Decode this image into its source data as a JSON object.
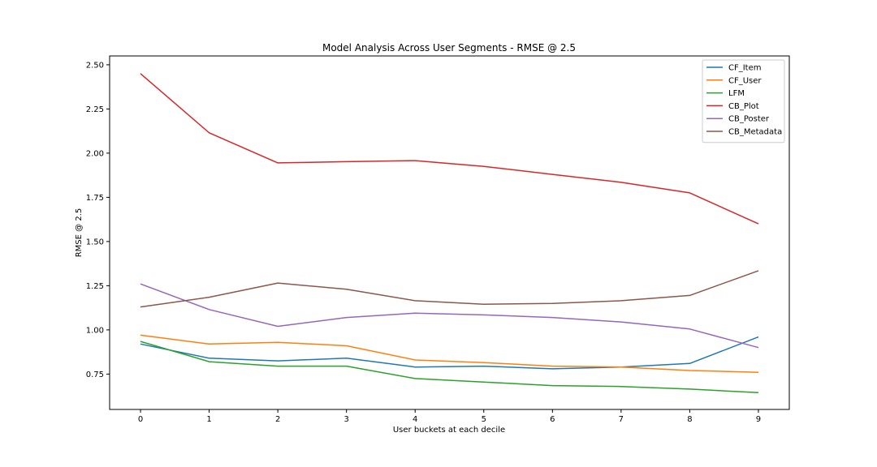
{
  "chart_data": {
    "type": "line",
    "title": "Model Analysis Across User Segments - RMSE @ 2.5",
    "xlabel": "User buckets at each decile",
    "ylabel": "RMSE @ 2.5",
    "x": [
      0,
      1,
      2,
      3,
      4,
      5,
      6,
      7,
      8,
      9
    ],
    "xticks": [
      "0",
      "1",
      "2",
      "3",
      "4",
      "5",
      "6",
      "7",
      "8",
      "9"
    ],
    "yticks": [
      "0.75",
      "1.00",
      "1.25",
      "1.50",
      "1.75",
      "2.00",
      "2.25",
      "2.50"
    ],
    "ylim": [
      0.55,
      2.55
    ],
    "xlim": [
      -0.45,
      9.45
    ],
    "grid": false,
    "legend_position": "top-right",
    "series": [
      {
        "name": "CF_Item",
        "color": "#1f77b4",
        "values": [
          0.92,
          0.84,
          0.825,
          0.84,
          0.79,
          0.795,
          0.78,
          0.79,
          0.81,
          0.96
        ]
      },
      {
        "name": "CF_User",
        "color": "#ff7f0e",
        "values": [
          0.97,
          0.92,
          0.93,
          0.91,
          0.83,
          0.815,
          0.795,
          0.79,
          0.77,
          0.76
        ]
      },
      {
        "name": "LFM",
        "color": "#2ca02c",
        "values": [
          0.935,
          0.82,
          0.795,
          0.795,
          0.725,
          0.705,
          0.685,
          0.68,
          0.665,
          0.645
        ]
      },
      {
        "name": "CB_Plot",
        "color": "#d62728",
        "values": [
          2.45,
          2.115,
          1.945,
          1.952,
          1.958,
          1.925,
          1.88,
          1.835,
          1.775,
          1.6
        ]
      },
      {
        "name": "CB_Poster",
        "color": "#9467bd",
        "values": [
          1.26,
          1.115,
          1.02,
          1.07,
          1.095,
          1.085,
          1.07,
          1.045,
          1.005,
          0.9
        ]
      },
      {
        "name": "CB_Metadata",
        "color": "#8c564b",
        "values": [
          1.13,
          1.185,
          1.265,
          1.23,
          1.165,
          1.145,
          1.15,
          1.165,
          1.195,
          1.335
        ]
      }
    ]
  }
}
